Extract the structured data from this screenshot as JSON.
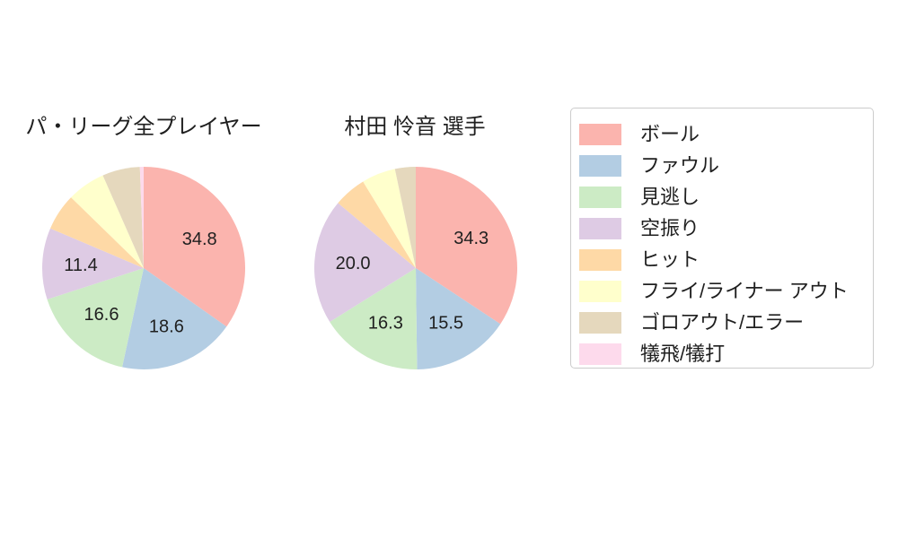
{
  "figure": {
    "background": "#ffffff",
    "text_color": "#1f1f1f"
  },
  "legend": {
    "position": "right",
    "border_color": "#cccccc",
    "items": [
      {
        "key": "ball",
        "label": "ボール",
        "color": "#fbb4ae"
      },
      {
        "key": "foul",
        "label": "ファウル",
        "color": "#b3cde3"
      },
      {
        "key": "called-strike",
        "label": "見逃し",
        "color": "#ccebc5"
      },
      {
        "key": "swinging-strike",
        "label": "空振り",
        "color": "#decbe4"
      },
      {
        "key": "hit",
        "label": "ヒット",
        "color": "#fed9a6"
      },
      {
        "key": "fly-liner-out",
        "label": "フライ/ライナー アウト",
        "color": "#ffffcc"
      },
      {
        "key": "ground-out-error",
        "label": "ゴロアウト/エラー",
        "color": "#e5d8bd"
      },
      {
        "key": "sacrifice",
        "label": "犠飛/犠打",
        "color": "#fddaec"
      }
    ]
  },
  "chart_data": [
    {
      "type": "pie",
      "title": "パ・リーグ全プレイヤー",
      "units": "percent",
      "start_angle": "12-oclock",
      "direction": "clockwise",
      "categories": [
        "ボール",
        "ファウル",
        "見逃し",
        "空振り",
        "ヒット",
        "フライ/ライナー アウト",
        "ゴロアウト/エラー",
        "犠飛/犠打"
      ],
      "values": [
        34.8,
        18.6,
        16.6,
        11.4,
        5.9,
        6.1,
        6.0,
        0.6
      ],
      "labels": [
        "34.8",
        "18.6",
        "16.6",
        "11.4",
        null,
        null,
        null,
        null
      ]
    },
    {
      "type": "pie",
      "title": "村田 怜音 選手",
      "units": "percent",
      "start_angle": "12-oclock",
      "direction": "clockwise",
      "categories": [
        "ボール",
        "ファウル",
        "見逃し",
        "空振り",
        "ヒット",
        "フライ/ライナー アウト",
        "ゴロアウト/エラー",
        "犠飛/犠打"
      ],
      "values": [
        34.3,
        15.5,
        16.3,
        20.0,
        5.2,
        5.4,
        3.3,
        0.0
      ],
      "labels": [
        "34.3",
        "15.5",
        "16.3",
        "20.0",
        null,
        null,
        null,
        null
      ]
    }
  ]
}
